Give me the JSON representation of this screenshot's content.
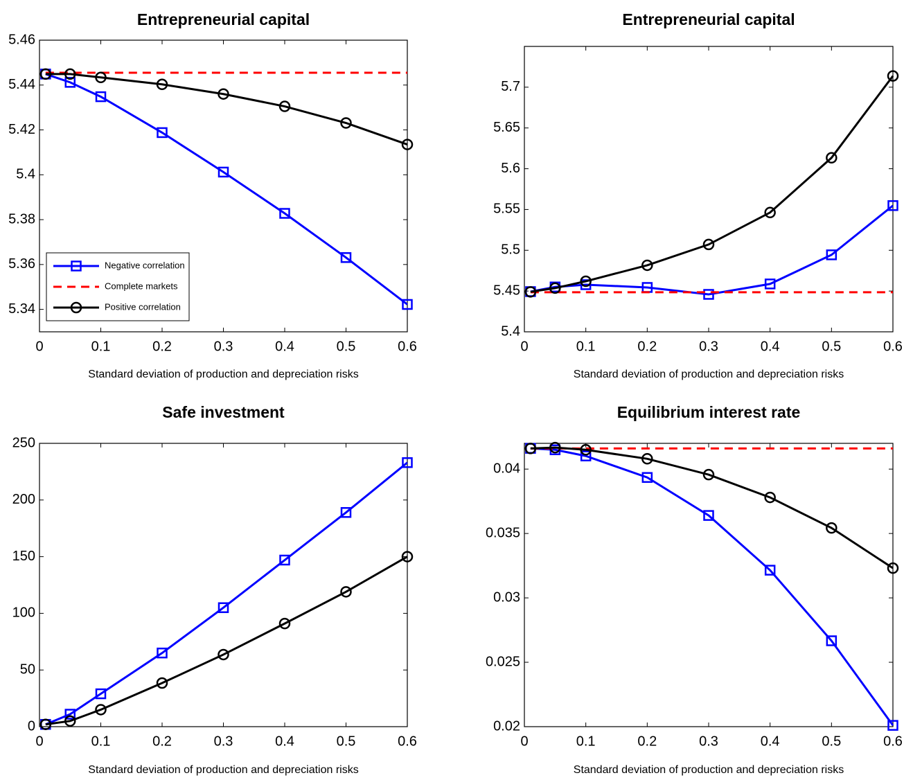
{
  "chart_data": [
    {
      "type": "line",
      "title": "Entrepreneurial capital",
      "x_label": "Standard deviation of production and depreciation risks",
      "x": [
        0.01,
        0.05,
        0.1,
        0.2,
        0.3,
        0.4,
        0.5,
        0.6
      ],
      "xlim": [
        0,
        0.6
      ],
      "xticks": [
        0,
        0.1,
        0.2,
        0.3,
        0.4,
        0.5,
        0.6
      ],
      "ylim": [
        5.33,
        5.46
      ],
      "yticks": [
        5.34,
        5.36,
        5.38,
        5.4,
        5.42,
        5.44,
        5.46
      ],
      "legend": "lower left",
      "series": [
        {
          "name": "Negative correlation",
          "color": "#0000ff",
          "marker": "square",
          "dash": false,
          "values": [
            5.4449,
            5.4412,
            5.4348,
            5.4188,
            5.4012,
            5.3828,
            5.3631,
            5.3422
          ]
        },
        {
          "name": "Complete markets",
          "color": "#ff0000",
          "marker": "none",
          "dash": true,
          "values": [
            5.4455,
            5.4455,
            5.4455,
            5.4455,
            5.4455,
            5.4455,
            5.4455,
            5.4455
          ]
        },
        {
          "name": "Positive correlation",
          "color": "#000000",
          "marker": "circle",
          "dash": false,
          "values": [
            5.4449,
            5.4449,
            5.4434,
            5.4403,
            5.436,
            5.4305,
            5.4231,
            5.4135
          ]
        }
      ]
    },
    {
      "type": "line",
      "title": "Entrepreneurial capital",
      "x_label": "Standard deviation of production and depreciation risks",
      "x": [
        0.01,
        0.05,
        0.1,
        0.2,
        0.3,
        0.4,
        0.5,
        0.6
      ],
      "xlim": [
        0,
        0.6
      ],
      "xticks": [
        0,
        0.1,
        0.2,
        0.3,
        0.4,
        0.5,
        0.6
      ],
      "ylim": [
        5.4,
        5.75
      ],
      "yticks": [
        5.4,
        5.45,
        5.5,
        5.55,
        5.6,
        5.65,
        5.7
      ],
      "series": [
        {
          "color": "#0000ff",
          "marker": "square",
          "dash": false,
          "values": [
            5.4493,
            5.455,
            5.4578,
            5.4544,
            5.4459,
            5.4587,
            5.4944,
            5.5548
          ]
        },
        {
          "color": "#ff0000",
          "marker": "none",
          "dash": true,
          "values": [
            5.4485,
            5.4485,
            5.4485,
            5.4485,
            5.4485,
            5.4485,
            5.4485,
            5.4485
          ]
        },
        {
          "color": "#000000",
          "marker": "circle",
          "dash": false,
          "values": [
            5.449,
            5.4536,
            5.462,
            5.4816,
            5.5071,
            5.5463,
            5.6134,
            5.7138
          ]
        }
      ]
    },
    {
      "type": "line",
      "title": "Safe investment",
      "x_label": "Standard deviation of production and depreciation risks",
      "x": [
        0.01,
        0.05,
        0.1,
        0.2,
        0.3,
        0.4,
        0.5,
        0.6
      ],
      "xlim": [
        0,
        0.6
      ],
      "xticks": [
        0,
        0.1,
        0.2,
        0.3,
        0.4,
        0.5,
        0.6
      ],
      "ylim": [
        0,
        250
      ],
      "yticks": [
        0,
        50,
        100,
        150,
        200,
        250
      ],
      "series": [
        {
          "color": "#0000ff",
          "marker": "square",
          "dash": false,
          "values": [
            2,
            11,
            29,
            65,
            105,
            147,
            189,
            233
          ]
        },
        {
          "color": "#000000",
          "marker": "circle",
          "dash": false,
          "values": [
            2,
            5,
            15,
            38.5,
            63.6,
            91,
            119,
            150
          ]
        }
      ]
    },
    {
      "type": "line",
      "title": "Equilibrium interest rate",
      "x_label": "Standard deviation of production and depreciation risks",
      "x": [
        0.01,
        0.05,
        0.1,
        0.2,
        0.3,
        0.4,
        0.5,
        0.6
      ],
      "xlim": [
        0,
        0.6
      ],
      "xticks": [
        0,
        0.1,
        0.2,
        0.3,
        0.4,
        0.5,
        0.6
      ],
      "ylim": [
        0.02,
        0.042
      ],
      "yticks": [
        0.02,
        0.025,
        0.03,
        0.035,
        0.04
      ],
      "series": [
        {
          "color": "#0000ff",
          "marker": "square",
          "dash": false,
          "values": [
            0.04161,
            0.0415,
            0.04102,
            0.03935,
            0.0364,
            0.03215,
            0.02667,
            0.0201
          ]
        },
        {
          "color": "#ff0000",
          "marker": "none",
          "dash": true,
          "values": [
            0.0416,
            0.0416,
            0.0416,
            0.0416,
            0.0416,
            0.0416,
            0.0416,
            0.0416
          ]
        },
        {
          "color": "#000000",
          "marker": "circle",
          "dash": false,
          "values": [
            0.0416,
            0.04167,
            0.0415,
            0.0408,
            0.03957,
            0.0378,
            0.03543,
            0.03231
          ]
        }
      ]
    }
  ]
}
